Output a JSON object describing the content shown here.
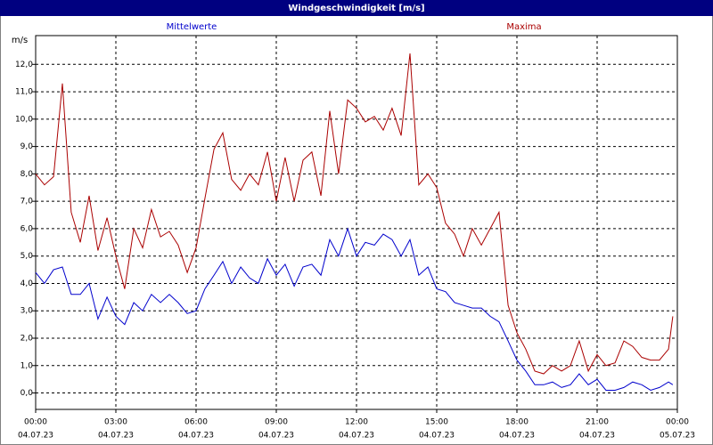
{
  "chart_data": {
    "type": "line",
    "title": "Windgeschwindigkeit [m/s]",
    "y_label": "m/s",
    "x": [
      0,
      0.33,
      0.67,
      1,
      1.33,
      1.67,
      2,
      2.33,
      2.67,
      3,
      3.33,
      3.67,
      4,
      4.33,
      4.67,
      5,
      5.33,
      5.67,
      6,
      6.33,
      6.67,
      7,
      7.33,
      7.67,
      8,
      8.33,
      8.67,
      9,
      9.33,
      9.67,
      10,
      10.33,
      10.67,
      11,
      11.33,
      11.67,
      12,
      12.33,
      12.67,
      13,
      13.33,
      13.67,
      14,
      14.33,
      14.67,
      15,
      15.33,
      15.67,
      16,
      16.33,
      16.67,
      17,
      17.33,
      17.67,
      18,
      18.33,
      18.67,
      19,
      19.33,
      19.67,
      20,
      20.33,
      20.67,
      21,
      21.33,
      21.67,
      22,
      22.33,
      22.67,
      23,
      23.33,
      23.67,
      23.83
    ],
    "series": [
      {
        "name": "Mittelwerte",
        "color": "#0000cc",
        "values": [
          4.4,
          4.0,
          4.5,
          4.6,
          3.6,
          3.6,
          4.0,
          2.7,
          3.5,
          2.8,
          2.5,
          3.3,
          3.0,
          3.6,
          3.3,
          3.6,
          3.3,
          2.9,
          3.0,
          3.8,
          4.3,
          4.8,
          4.0,
          4.6,
          4.2,
          4.0,
          4.9,
          4.3,
          4.7,
          3.9,
          4.6,
          4.7,
          4.3,
          5.6,
          5.0,
          6.0,
          5.0,
          5.5,
          5.4,
          5.8,
          5.6,
          5.0,
          5.6,
          4.3,
          4.6,
          3.8,
          3.7,
          3.3,
          3.2,
          3.1,
          3.1,
          2.8,
          2.6,
          1.9,
          1.2,
          0.8,
          0.3,
          0.3,
          0.4,
          0.2,
          0.3,
          0.7,
          0.3,
          0.5,
          0.1,
          0.1,
          0.2,
          0.4,
          0.3,
          0.1,
          0.2,
          0.4,
          0.3
        ]
      },
      {
        "name": "Maxima",
        "color": "#aa0000",
        "values": [
          8.0,
          7.6,
          7.9,
          11.3,
          6.6,
          5.5,
          7.2,
          5.2,
          6.4,
          5.0,
          3.8,
          6.0,
          5.3,
          6.7,
          5.7,
          5.9,
          5.4,
          4.4,
          5.3,
          7.1,
          8.9,
          9.5,
          7.8,
          7.4,
          8.0,
          7.6,
          8.8,
          7.0,
          8.6,
          7.0,
          8.5,
          8.8,
          7.2,
          10.3,
          8.0,
          10.7,
          10.4,
          9.9,
          10.1,
          9.6,
          10.4,
          9.4,
          12.4,
          7.6,
          8.0,
          7.5,
          6.2,
          5.8,
          5.0,
          6.0,
          5.4,
          6.0,
          6.6,
          3.2,
          2.2,
          1.6,
          0.8,
          0.7,
          1.0,
          0.8,
          1.0,
          1.9,
          0.8,
          1.4,
          1.0,
          1.1,
          1.9,
          1.7,
          1.3,
          1.2,
          1.2,
          1.6,
          2.8
        ]
      }
    ],
    "xlim": [
      0,
      24
    ],
    "xticks": [
      {
        "value": 0,
        "label": "00:00"
      },
      {
        "value": 3,
        "label": "03:00"
      },
      {
        "value": 6,
        "label": "06:00"
      },
      {
        "value": 9,
        "label": "09:00"
      },
      {
        "value": 12,
        "label": "12:00"
      },
      {
        "value": 15,
        "label": "15:00"
      },
      {
        "value": 18,
        "label": "18:00"
      },
      {
        "value": 21,
        "label": "21:00"
      },
      {
        "value": 24,
        "label": "00:00"
      }
    ],
    "xtick_dates": [
      "04.07.23",
      "04.07.23",
      "04.07.23",
      "04.07.23",
      "04.07.23",
      "04.07.23",
      "04.07.23",
      "04.07.23",
      "05.07.23"
    ],
    "ylim": [
      -0.6,
      13.05
    ],
    "yticks": [
      {
        "value": 0,
        "label": "0,0"
      },
      {
        "value": 1,
        "label": "1,0"
      },
      {
        "value": 2,
        "label": "2,0"
      },
      {
        "value": 3,
        "label": "3,0"
      },
      {
        "value": 4,
        "label": "4,0"
      },
      {
        "value": 5,
        "label": "5,0"
      },
      {
        "value": 6,
        "label": "6,0"
      },
      {
        "value": 7,
        "label": "7,0"
      },
      {
        "value": 8,
        "label": "8,0"
      },
      {
        "value": 9,
        "label": "9,0"
      },
      {
        "value": 10,
        "label": "10,0"
      },
      {
        "value": 11,
        "label": "11,0"
      },
      {
        "value": 12,
        "label": "12,0"
      }
    ],
    "grid": true
  }
}
